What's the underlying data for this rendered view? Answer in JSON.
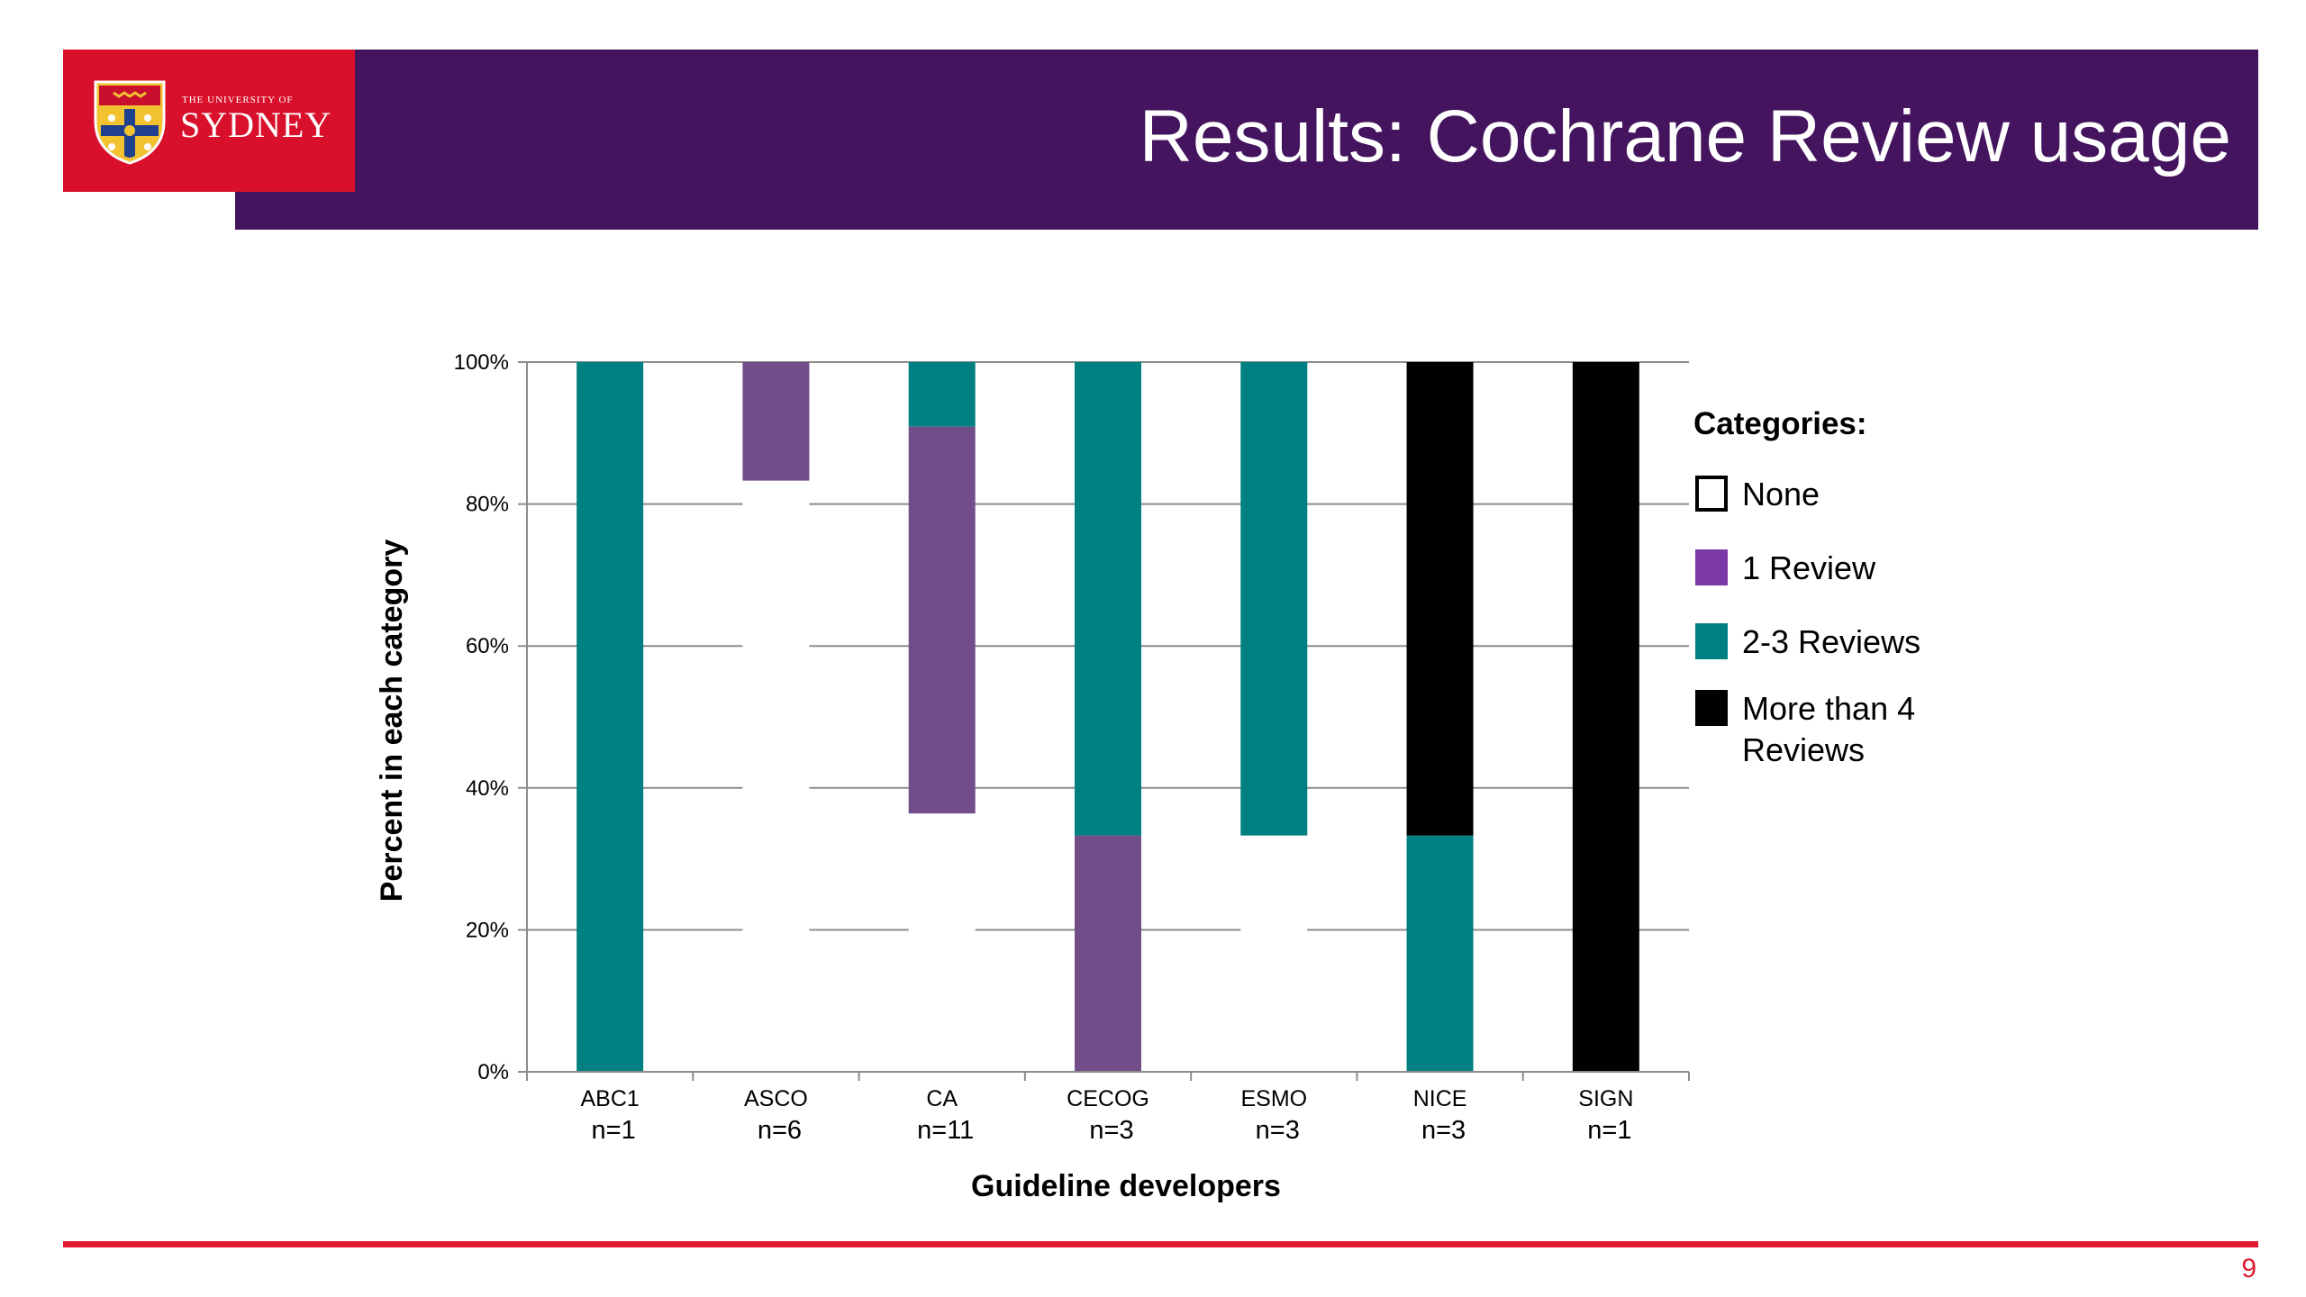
{
  "slide": {
    "title": "Results: Cochrane Review usage",
    "page_number": "9"
  },
  "logo": {
    "line1": "THE UNIVERSITY OF",
    "line2": "SYDNEY"
  },
  "colors": {
    "title_bar": "#44155e",
    "logo_background": "#d9102b",
    "footer_rule": "#e01a33",
    "none": "#ffffff",
    "one_review": "#714e8a",
    "two_three_reviews": "#008080",
    "more_than_four": "#000000"
  },
  "chart_data": {
    "type": "bar",
    "stacked": true,
    "categories": [
      "ABC1",
      "ASCO",
      "CA",
      "CECOG",
      "ESMO",
      "NICE",
      "SIGN"
    ],
    "category_sublabels": [
      "n=1",
      "n=6",
      "n=11",
      "n=3",
      "n=3",
      "n=3",
      "n=1"
    ],
    "series": [
      {
        "name": "None",
        "color": "#ffffff",
        "values": [
          0,
          83.3,
          36.4,
          0,
          33.3,
          0,
          0
        ]
      },
      {
        "name": "1 Review",
        "color": "#714e8a",
        "values": [
          0,
          16.7,
          54.5,
          33.3,
          0,
          0,
          0
        ]
      },
      {
        "name": "2-3 Reviews",
        "color": "#008080",
        "values": [
          100,
          0,
          9.1,
          66.7,
          66.7,
          33.3,
          0
        ]
      },
      {
        "name": "More than 4 Reviews",
        "color": "#000000",
        "values": [
          0,
          0,
          0,
          0,
          0,
          66.7,
          100
        ]
      }
    ],
    "xlabel": "Guideline developers",
    "ylabel": "Percent in each category",
    "ylim": [
      0,
      100
    ],
    "yticks": [
      "0%",
      "20%",
      "40%",
      "60%",
      "80%",
      "100%"
    ],
    "grid": true,
    "legend": {
      "title": "Categories:",
      "placement": "right",
      "entries": [
        {
          "label": "None",
          "color": "#ffffff"
        },
        {
          "label": "1 Review",
          "color": "#7b3aa6"
        },
        {
          "label": "2-3 Reviews",
          "color": "#008080"
        },
        {
          "label": "More than 4 Reviews",
          "label_lines": [
            "More than 4",
            "Reviews"
          ],
          "color": "#000000"
        }
      ]
    }
  }
}
